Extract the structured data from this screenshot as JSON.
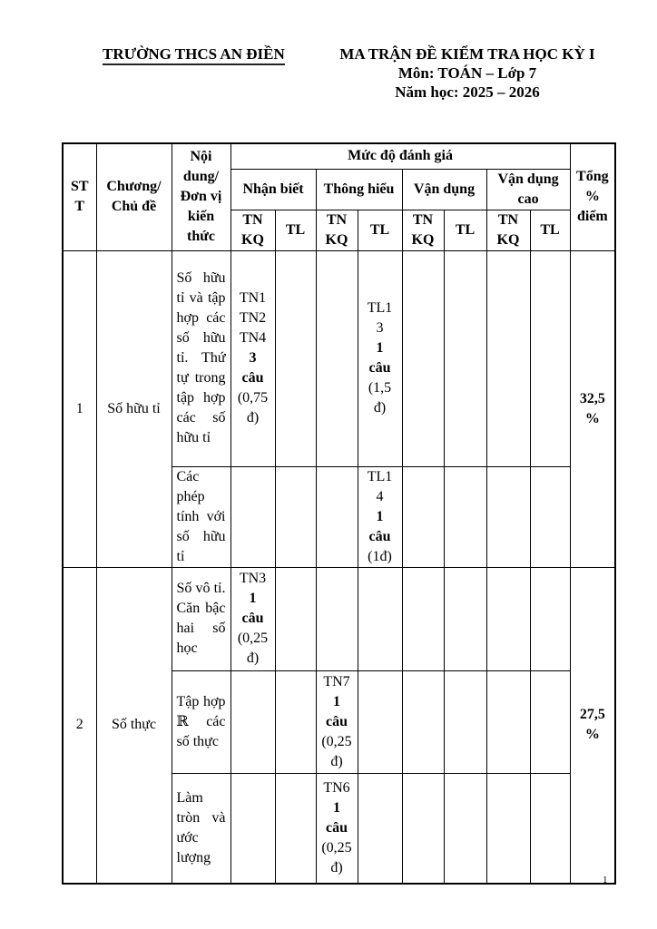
{
  "header": {
    "school": "TRƯỜNG THCS AN ĐIỀN",
    "title": "MA TRẬN ĐỀ KIỂM TRA HỌC KỲ I",
    "subject": "Môn: TOÁN – Lớp 7",
    "school_year": "Năm học: 2025 – 2026"
  },
  "table": {
    "col_headers": {
      "stt": "STT",
      "chapter": "Chương/ Chủ đề",
      "content": "Nội dung/ Đơn vị kiến thức",
      "assessment": "Mức độ đánh giá",
      "levels": [
        {
          "label": "Nhận biết"
        },
        {
          "label": "Thông hiểu"
        },
        {
          "label": "Vận dụng"
        },
        {
          "label": "Vận dụng cao"
        }
      ],
      "tnkq": "TN KQ",
      "tl": "TL",
      "total": "Tổng % điểm"
    },
    "rows": [
      {
        "stt": "1",
        "chapter": "Số hữu tỉ",
        "total": [
          {
            "t": "32,5"
          },
          {
            "t": "%"
          }
        ],
        "subrows": [
          {
            "content": "Số hữu tỉ và tập hợp các số hữu tỉ. Thứ tự trong tập hợp các số hữu tỉ",
            "nb_tnkq": [
              {
                "t": "TN1"
              },
              {
                "t": "TN2"
              },
              {
                "t": "TN4"
              },
              {
                "t": "3",
                "b": true
              },
              {
                "t": "câu",
                "b": true
              },
              {
                "t": "(0,75"
              },
              {
                "t": "đ)"
              }
            ],
            "th_tl": [
              {
                "t": "TL1"
              },
              {
                "t": "3"
              },
              {
                "t": "1",
                "b": true
              },
              {
                "t": "câu",
                "b": true
              },
              {
                "t": "(1,5"
              },
              {
                "t": "đ)"
              }
            ]
          },
          {
            "content": "Các phép tính với số hữu tỉ",
            "th_tl": [
              {
                "t": "TL1"
              },
              {
                "t": "4"
              },
              {
                "t": "1",
                "b": true
              },
              {
                "t": "câu",
                "b": true
              },
              {
                "t": "(1đ)"
              }
            ]
          }
        ]
      },
      {
        "stt": "2",
        "chapter": "Số thực",
        "total": [
          {
            "t": "27,5"
          },
          {
            "t": "%"
          }
        ],
        "subrows": [
          {
            "content": "Số vô tỉ. Căn bậc hai số học",
            "nb_tnkq": [
              {
                "t": "TN3"
              },
              {
                "t": "1",
                "b": true
              },
              {
                "t": "câu",
                "b": true
              },
              {
                "t": "(0,25"
              },
              {
                "t": "đ)"
              }
            ]
          },
          {
            "content": "Tập hợp ℝ các số thực",
            "th_tnkq": [
              {
                "t": "TN7"
              },
              {
                "t": "1",
                "b": true
              },
              {
                "t": "câu",
                "b": true
              },
              {
                "t": "(0,25"
              },
              {
                "t": "đ)"
              }
            ]
          },
          {
            "content": "Làm tròn và ước lượng",
            "th_tnkq": [
              {
                "t": "TN6"
              },
              {
                "t": "1",
                "b": true
              },
              {
                "t": "câu",
                "b": true
              },
              {
                "t": "(0,25"
              },
              {
                "t": "đ)"
              }
            ]
          }
        ]
      }
    ]
  },
  "footer": {
    "page_number": "1"
  }
}
